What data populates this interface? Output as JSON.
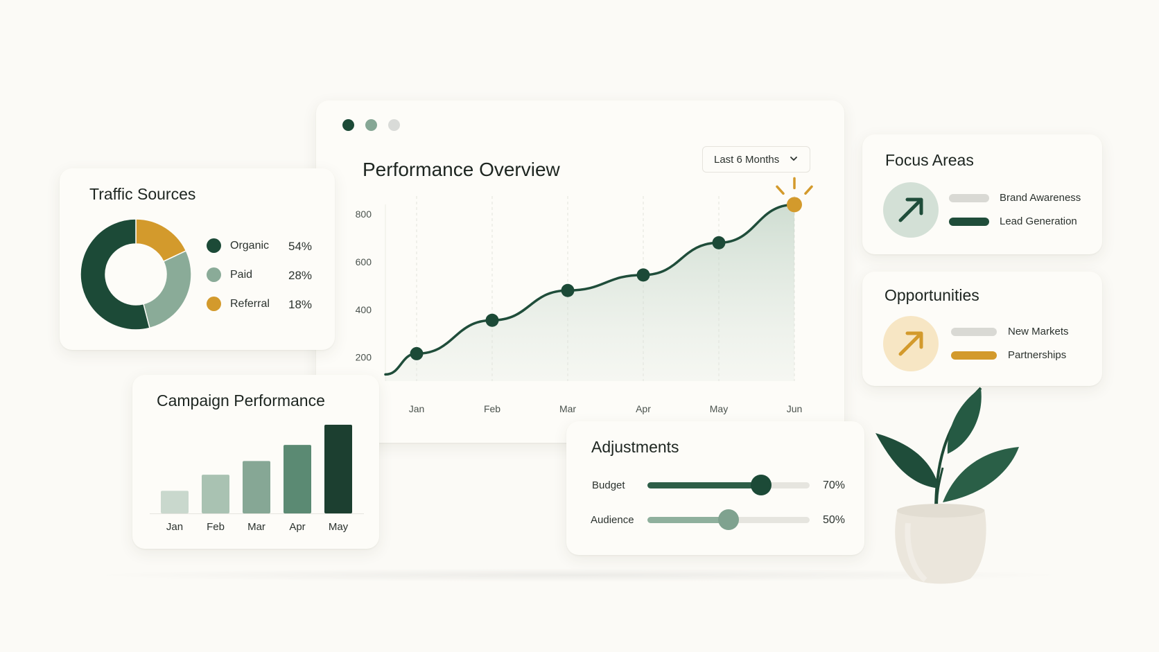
{
  "colors": {
    "dark_green": "#1f4d3a",
    "mid_green": "#86a795",
    "light_green": "#cfdcd2",
    "gold": "#d39a2c",
    "grey": "#d8d8d3"
  },
  "window_controls": [
    "dark-green",
    "sage",
    "light-grey"
  ],
  "performance": {
    "title": "Performance Overview",
    "range_label": "Last 6 Months",
    "range_icon": "chevron-down-icon"
  },
  "traffic": {
    "title": "Traffic Sources",
    "items": [
      {
        "name": "Organic",
        "pct": "54%",
        "value": 54,
        "color": "#1c4a37"
      },
      {
        "name": "Paid",
        "pct": "28%",
        "value": 28,
        "color": "#8aab98"
      },
      {
        "name": "Referral",
        "pct": "18%",
        "value": 18,
        "color": "#d39a2c"
      }
    ]
  },
  "campaign": {
    "title": "Campaign Performance"
  },
  "focus": {
    "title": "Focus Areas",
    "icon": "arrow-up-right-icon",
    "items": [
      {
        "label": "Brand Awareness",
        "color": "#d9d9d4"
      },
      {
        "label": "Lead Generation",
        "color": "#1f4d3a"
      }
    ]
  },
  "opportunities": {
    "title": "Opportunities",
    "icon": "arrow-up-right-icon",
    "items": [
      {
        "label": "New Markets",
        "color": "#d9d9d4"
      },
      {
        "label": "Partnerships",
        "color": "#d39a2c"
      }
    ]
  },
  "adjustments": {
    "title": "Adjustments",
    "sliders": [
      {
        "label": "Budget",
        "value_text": "70%",
        "value": 0.7,
        "fill": "#2d5e48",
        "thumb": "#1c4a37"
      },
      {
        "label": "Audience",
        "value_text": "50%",
        "value": 0.5,
        "fill": "#8fb09d",
        "thumb": "#7fa28f"
      }
    ]
  },
  "chart_data": [
    {
      "type": "area",
      "title": "Performance Overview",
      "x": [
        "Jan",
        "Feb",
        "Mar",
        "Apr",
        "May",
        "Jun"
      ],
      "y_ticks": [
        200,
        400,
        600,
        800
      ],
      "ylim": [
        100,
        870
      ],
      "values": [
        215,
        355,
        480,
        545,
        680,
        840
      ],
      "highlight_last": true,
      "grid": "vertical dashed"
    },
    {
      "type": "bar",
      "title": "Campaign Performance",
      "categories": [
        "Jan",
        "Feb",
        "Mar",
        "Apr",
        "May"
      ],
      "values": [
        28,
        48,
        65,
        85,
        110
      ],
      "ylim": [
        0,
        110
      ],
      "bar_colors": [
        "#c9d8cd",
        "#a9c2b2",
        "#86a795",
        "#5b8a73",
        "#1c3f30"
      ]
    }
  ]
}
